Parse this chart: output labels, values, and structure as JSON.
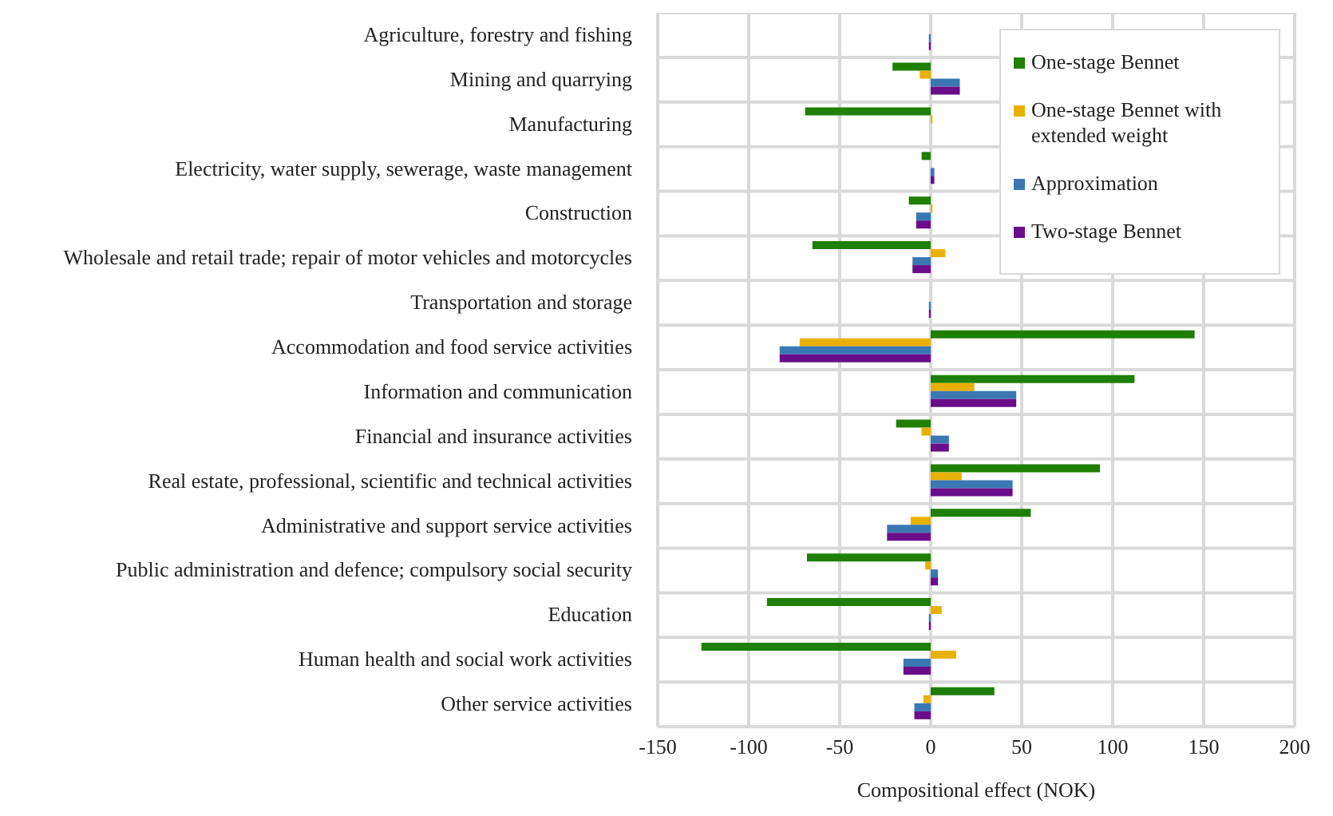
{
  "chart_data": {
    "type": "bar",
    "orientation": "horizontal",
    "xlabel": "Compositional effect (NOK)",
    "categories": [
      "Agriculture, forestry and fishing",
      "Mining and quarrying",
      "Manufacturing",
      "Electricity, water supply, sewerage, waste management",
      "Construction",
      "Wholesale and retail trade; repair of motor vehicles and motorcycles",
      "Transportation and storage",
      "Accommodation and food service activities",
      "Information and communication",
      "Financial and insurance activities",
      "Real estate, professional, scientific and technical activities",
      "Administrative and support service activities",
      "Public administration and defence; compulsory social security",
      "Education",
      "Human health and social work activities",
      "Other service activities"
    ],
    "series": [
      {
        "name": "One-stage Bennet",
        "color": "#1e7f00",
        "values": [
          0,
          -21,
          -69,
          -5,
          -12,
          -65,
          0,
          145,
          112,
          -19,
          93,
          55,
          -68,
          -90,
          -126,
          35
        ]
      },
      {
        "name": "One-stage Bennet with extended weight",
        "color": "#e8b000",
        "values": [
          0,
          -6,
          1,
          0,
          1,
          8,
          0,
          -72,
          24,
          -5,
          17,
          -11,
          -3,
          6,
          14,
          -4
        ]
      },
      {
        "name": "Approximation",
        "color": "#3a78b4",
        "values": [
          -1,
          16,
          0,
          2,
          -8,
          -10,
          -1,
          -83,
          47,
          10,
          45,
          -24,
          4,
          -1,
          -15,
          -9
        ]
      },
      {
        "name": "Two-stage Bennet",
        "color": "#6a0d8a",
        "values": [
          -1,
          16,
          0,
          2,
          -8,
          -10,
          -1,
          -83,
          47,
          10,
          45,
          -24,
          4,
          -1,
          -15,
          -9
        ]
      }
    ],
    "xlim": [
      -150,
      200
    ],
    "xticks": [
      -150,
      -100,
      -50,
      0,
      50,
      100,
      150,
      200
    ],
    "grid": true,
    "legend": "top right"
  }
}
